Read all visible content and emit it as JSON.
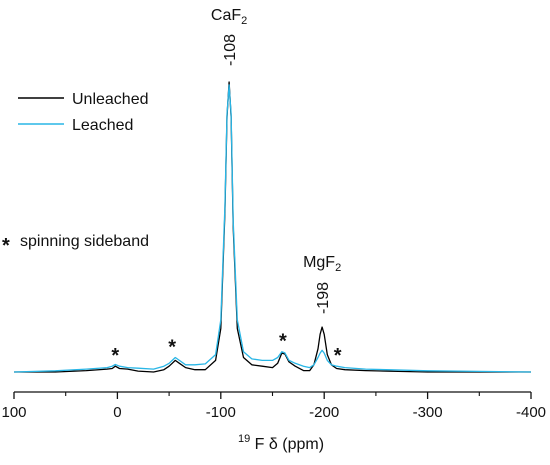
{
  "chart_data": {
    "type": "line",
    "xlabel_sup": "19",
    "xlabel_main": "F δ (ppm)",
    "xlim": [
      100,
      -400
    ],
    "x_reversed": true,
    "x_ticks": [
      100,
      0,
      -100,
      -200,
      -300,
      -400
    ],
    "x_tick_labels": [
      "100",
      "0",
      "-100",
      "-200",
      "-300",
      "-400"
    ],
    "y_axis_shown": false,
    "series": [
      {
        "name": "Unleached",
        "color": "#000000",
        "points": [
          [
            100,
            0.0
          ],
          [
            60,
            0.0
          ],
          [
            30,
            0.005
          ],
          [
            10,
            0.01
          ],
          [
            5,
            0.012
          ],
          [
            2,
            0.02
          ],
          [
            -2,
            0.012
          ],
          [
            -10,
            0.01
          ],
          [
            -20,
            0.003
          ],
          [
            -35,
            0.0
          ],
          [
            -45,
            0.008
          ],
          [
            -50,
            0.02
          ],
          [
            -53,
            0.03
          ],
          [
            -56,
            0.04
          ],
          [
            -60,
            0.03
          ],
          [
            -66,
            0.015
          ],
          [
            -75,
            0.008
          ],
          [
            -85,
            0.008
          ],
          [
            -95,
            0.04
          ],
          [
            -100,
            0.15
          ],
          [
            -104,
            0.55
          ],
          [
            -106,
            0.88
          ],
          [
            -108,
            1.0
          ],
          [
            -110,
            0.88
          ],
          [
            -112,
            0.5
          ],
          [
            -116,
            0.15
          ],
          [
            -122,
            0.05
          ],
          [
            -130,
            0.025
          ],
          [
            -140,
            0.02
          ],
          [
            -150,
            0.015
          ],
          [
            -155,
            0.03
          ],
          [
            -159,
            0.065
          ],
          [
            -162,
            0.062
          ],
          [
            -166,
            0.035
          ],
          [
            -172,
            0.02
          ],
          [
            -180,
            0.005
          ],
          [
            -186,
            0.005
          ],
          [
            -190,
            0.025
          ],
          [
            -194,
            0.08
          ],
          [
            -196,
            0.13
          ],
          [
            -198,
            0.155
          ],
          [
            -200,
            0.13
          ],
          [
            -203,
            0.06
          ],
          [
            -207,
            0.025
          ],
          [
            -212,
            0.012
          ],
          [
            -220,
            0.008
          ],
          [
            -240,
            0.005
          ],
          [
            -260,
            0.003
          ],
          [
            -300,
            0.0
          ],
          [
            -350,
            0.0
          ],
          [
            -400,
            0.0
          ]
        ]
      },
      {
        "name": "Leached",
        "color": "#29b6e6",
        "points": [
          [
            100,
            0.0
          ],
          [
            60,
            0.004
          ],
          [
            30,
            0.01
          ],
          [
            10,
            0.015
          ],
          [
            5,
            0.02
          ],
          [
            2,
            0.026
          ],
          [
            -2,
            0.02
          ],
          [
            -10,
            0.015
          ],
          [
            -20,
            0.013
          ],
          [
            -35,
            0.01
          ],
          [
            -45,
            0.02
          ],
          [
            -50,
            0.03
          ],
          [
            -53,
            0.04
          ],
          [
            -56,
            0.05
          ],
          [
            -60,
            0.04
          ],
          [
            -66,
            0.025
          ],
          [
            -75,
            0.025
          ],
          [
            -85,
            0.028
          ],
          [
            -95,
            0.06
          ],
          [
            -100,
            0.18
          ],
          [
            -104,
            0.57
          ],
          [
            -106,
            0.89
          ],
          [
            -108,
            0.99
          ],
          [
            -110,
            0.89
          ],
          [
            -112,
            0.52
          ],
          [
            -116,
            0.18
          ],
          [
            -122,
            0.07
          ],
          [
            -130,
            0.045
          ],
          [
            -140,
            0.04
          ],
          [
            -150,
            0.04
          ],
          [
            -155,
            0.05
          ],
          [
            -159,
            0.07
          ],
          [
            -162,
            0.066
          ],
          [
            -166,
            0.04
          ],
          [
            -172,
            0.03
          ],
          [
            -180,
            0.02
          ],
          [
            -186,
            0.015
          ],
          [
            -190,
            0.025
          ],
          [
            -194,
            0.05
          ],
          [
            -196,
            0.065
          ],
          [
            -198,
            0.075
          ],
          [
            -200,
            0.065
          ],
          [
            -203,
            0.04
          ],
          [
            -207,
            0.025
          ],
          [
            -212,
            0.02
          ],
          [
            -220,
            0.015
          ],
          [
            -240,
            0.01
          ],
          [
            -260,
            0.008
          ],
          [
            -300,
            0.004
          ],
          [
            -350,
            0.002
          ],
          [
            -400,
            0.0
          ]
        ]
      }
    ],
    "peak_labels": [
      {
        "x": -108,
        "name": "CaF",
        "sub": "2",
        "value": "-108"
      },
      {
        "x": -198,
        "name": "MgF",
        "sub": "2",
        "value": "-198"
      }
    ],
    "sideband_markers": [
      {
        "x": 2,
        "y": 0.02
      },
      {
        "x": -53,
        "y": 0.05
      },
      {
        "x": -160,
        "y": 0.07
      },
      {
        "x": -213,
        "y": 0.02
      }
    ],
    "annotation": {
      "symbol": "*",
      "text": "spinning sideband"
    },
    "legend": {
      "position": "top-left",
      "entries": [
        "Unleached",
        "Leached"
      ]
    }
  }
}
